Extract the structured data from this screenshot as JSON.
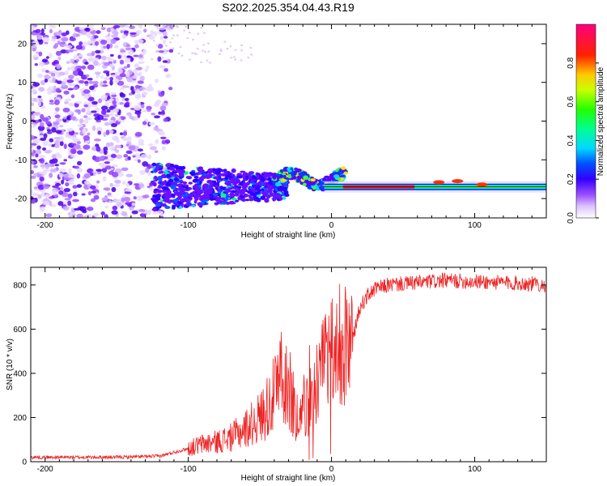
{
  "title": "S202.2025.354.04.43.R19",
  "chart_data": [
    {
      "type": "heatmap",
      "name": "spectrogram",
      "xlabel": "Height of straight line (km)",
      "ylabel": "Frequency (Hz)",
      "xlim": [
        -210,
        150
      ],
      "ylim": [
        -25,
        25
      ],
      "xticks": [
        -200,
        -100,
        0,
        100
      ],
      "yticks": [
        -20,
        -10,
        0,
        10,
        20
      ],
      "colorbar": {
        "label": "Normalized spectral amplitude",
        "range": [
          0.0,
          1.0
        ],
        "ticks": [
          "0.0",
          "0.2",
          "0.4",
          "0.6",
          "0.8"
        ],
        "colors": [
          "#ffffff",
          "#cc99ff",
          "#6600ff",
          "#0000ff",
          "#00ffff",
          "#00ff00",
          "#ffff00",
          "#ff0000",
          "#ff00aa"
        ]
      },
      "features": {
        "carrier_line": {
          "x_start": -125,
          "x_end": 150,
          "frequency_hz": -17,
          "peak_amplitude": 1.0
        },
        "noise_region": {
          "x_start": -210,
          "x_end": -120,
          "frequency_range": [
            -25,
            25
          ]
        }
      }
    },
    {
      "type": "line",
      "name": "snr",
      "xlabel": "Height of straight line (km)",
      "ylabel": "SNR (10 * v/v)",
      "xlim": [
        -210,
        150
      ],
      "ylim": [
        0,
        880
      ],
      "xticks": [
        -200,
        -100,
        0,
        100
      ],
      "yticks": [
        0,
        200,
        400,
        600,
        800
      ],
      "color": "#ee2222",
      "series": [
        {
          "name": "SNR",
          "x": [
            -210,
            -180,
            -150,
            -120,
            -100,
            -90,
            -80,
            -70,
            -60,
            -50,
            -40,
            -35,
            -30,
            -25,
            -20,
            -15,
            -10,
            -5,
            0,
            5,
            8,
            10,
            12,
            15,
            20,
            25,
            30,
            40,
            60,
            80,
            100,
            120,
            140,
            150
          ],
          "y": [
            20,
            20,
            20,
            25,
            60,
            80,
            90,
            110,
            150,
            200,
            300,
            420,
            350,
            220,
            250,
            280,
            350,
            420,
            460,
            500,
            560,
            520,
            500,
            560,
            700,
            750,
            780,
            800,
            810,
            820,
            815,
            810,
            805,
            800
          ]
        }
      ]
    }
  ]
}
